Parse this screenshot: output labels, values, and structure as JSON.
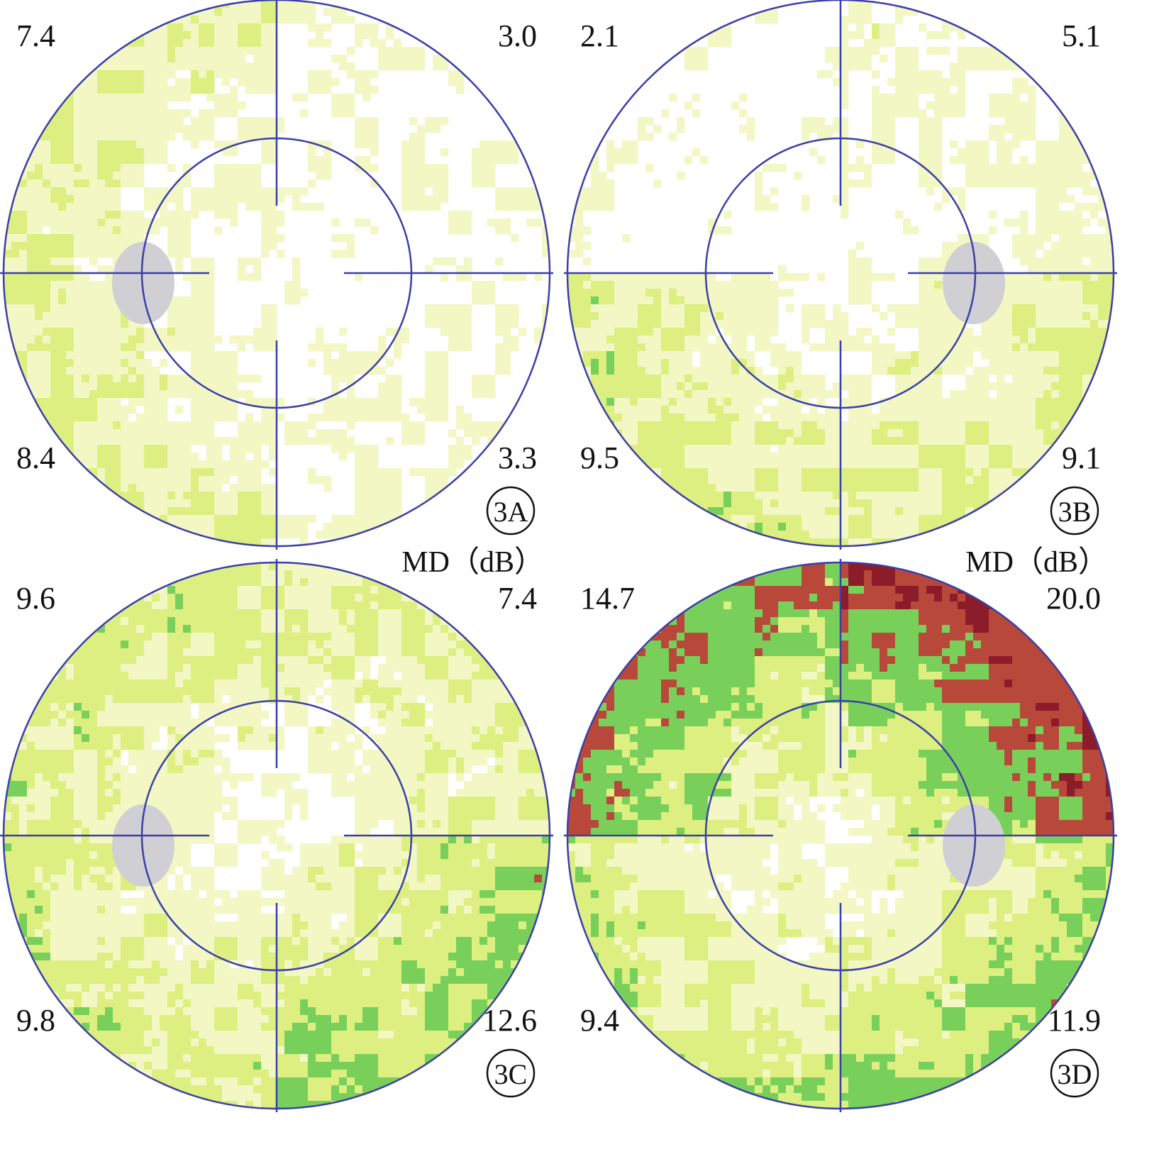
{
  "colors": {
    "white": "#ffffff",
    "pale": "#f2f7c4",
    "yellow": "#dcef80",
    "green": "#78d05a",
    "red": "#b8493a",
    "darkred": "#8c1c2a",
    "purple": "#3a2342",
    "black": "#0d0d0d",
    "blind": "#cfcfd4",
    "line": "#3b3fa8"
  },
  "panels": [
    {
      "label": "3A",
      "md_header": "",
      "md": {
        "tl": "7.4",
        "tr": "3.0",
        "bl": "8.4",
        "br": "3.3"
      },
      "blind_spot": "left",
      "severity": [
        1.2,
        0.4,
        1.3,
        0.5
      ]
    },
    {
      "label": "3B",
      "md_header": "",
      "md": {
        "tl": "2.1",
        "tr": "5.1",
        "bl": "9.5",
        "br": "9.1"
      },
      "blind_spot": "right",
      "severity": [
        0.2,
        0.7,
        1.5,
        1.4
      ]
    },
    {
      "label": "3C",
      "md_header": "MD（dB）",
      "md": {
        "tl": "9.6",
        "tr": "7.4",
        "bl": "9.8",
        "br": "12.6"
      },
      "blind_spot": "left",
      "severity": [
        1.6,
        1.3,
        1.6,
        2.1
      ]
    },
    {
      "label": "3D",
      "md_header": "MD（dB）",
      "md": {
        "tl": "14.7",
        "tr": "20.0",
        "bl": "9.4",
        "br": "11.9"
      },
      "blind_spot": "right",
      "severity": [
        2.6,
        3.3,
        1.6,
        2.0
      ]
    }
  ]
}
